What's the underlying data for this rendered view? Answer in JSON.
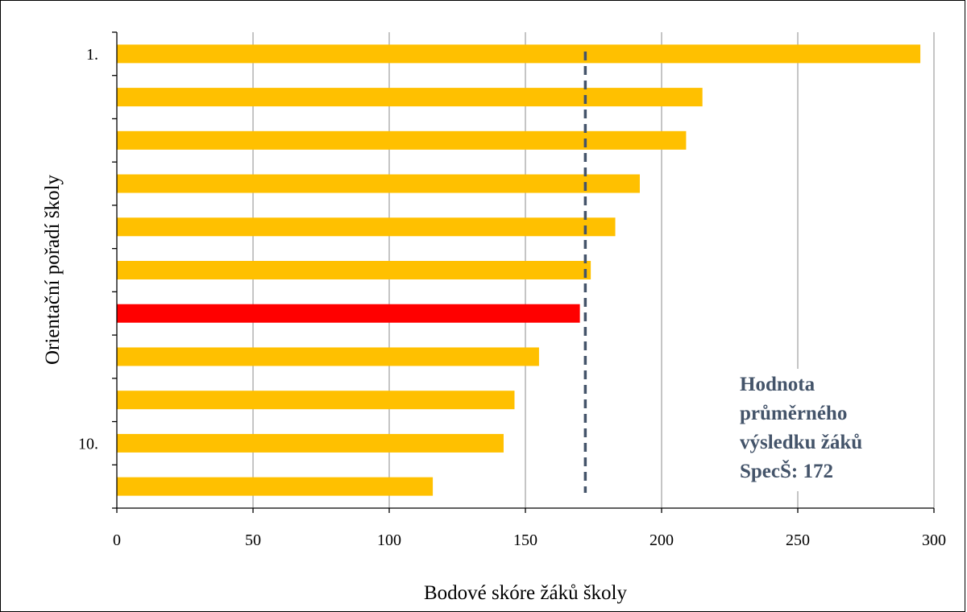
{
  "chart_data": {
    "type": "bar",
    "orientation": "horizontal",
    "title": "",
    "xlabel": "Bodové skóre žáků školy",
    "ylabel": "Orientační pořadí školy",
    "xlim": [
      0,
      300
    ],
    "x_ticks": [
      "0",
      "50",
      "100",
      "150",
      "200",
      "250",
      "300"
    ],
    "y_tick_labels": [
      "1.",
      "",
      "",
      "",
      "",
      "",
      "",
      "",
      "",
      "10.",
      ""
    ],
    "values": [
      295,
      215,
      209,
      192,
      183,
      174,
      170,
      155,
      146,
      142,
      116
    ],
    "highlight_index": 6,
    "bar_color": "#FFC000",
    "highlight_color": "#FF0000",
    "grid": "vertical",
    "legend": "none",
    "reference_line": {
      "value": 172,
      "style": "dashed",
      "color": "#44546A"
    },
    "annotation": {
      "lines": [
        "Hodnota",
        "průměrného",
        "výsledku žáků",
        "SpecŠ: 172"
      ],
      "color": "#44546A"
    }
  }
}
